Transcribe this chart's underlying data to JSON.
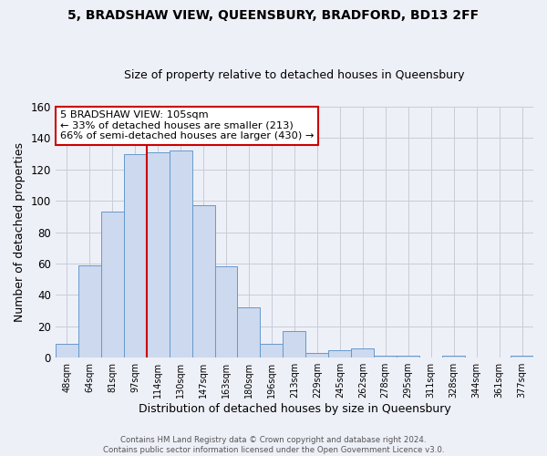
{
  "title1": "5, BRADSHAW VIEW, QUEENSBURY, BRADFORD, BD13 2FF",
  "title2": "Size of property relative to detached houses in Queensbury",
  "xlabel": "Distribution of detached houses by size in Queensbury",
  "ylabel": "Number of detached properties",
  "categories": [
    "48sqm",
    "64sqm",
    "81sqm",
    "97sqm",
    "114sqm",
    "130sqm",
    "147sqm",
    "163sqm",
    "180sqm",
    "196sqm",
    "213sqm",
    "229sqm",
    "245sqm",
    "262sqm",
    "278sqm",
    "295sqm",
    "311sqm",
    "328sqm",
    "344sqm",
    "361sqm",
    "377sqm"
  ],
  "values": [
    9,
    59,
    93,
    130,
    131,
    132,
    97,
    58,
    32,
    9,
    17,
    3,
    5,
    6,
    1,
    1,
    0,
    1,
    0,
    0,
    1
  ],
  "bar_color": "#ccd9ee",
  "bar_edge_color": "#6699cc",
  "vline_color": "#cc0000",
  "vline_x": 3.5,
  "ylim": [
    0,
    160
  ],
  "yticks": [
    0,
    20,
    40,
    60,
    80,
    100,
    120,
    140,
    160
  ],
  "grid_color": "#c8ccd8",
  "bg_color": "#eef0f8",
  "annotation_line1": "5 BRADSHAW VIEW: 105sqm",
  "annotation_line2": "← 33% of detached houses are smaller (213)",
  "annotation_line3": "66% of semi-detached houses are larger (430) →",
  "annotation_box_color": "#ffffff",
  "annotation_box_edge": "#cc0000",
  "footer1": "Contains HM Land Registry data © Crown copyright and database right 2024.",
  "footer2": "Contains public sector information licensed under the Open Government Licence v3.0."
}
